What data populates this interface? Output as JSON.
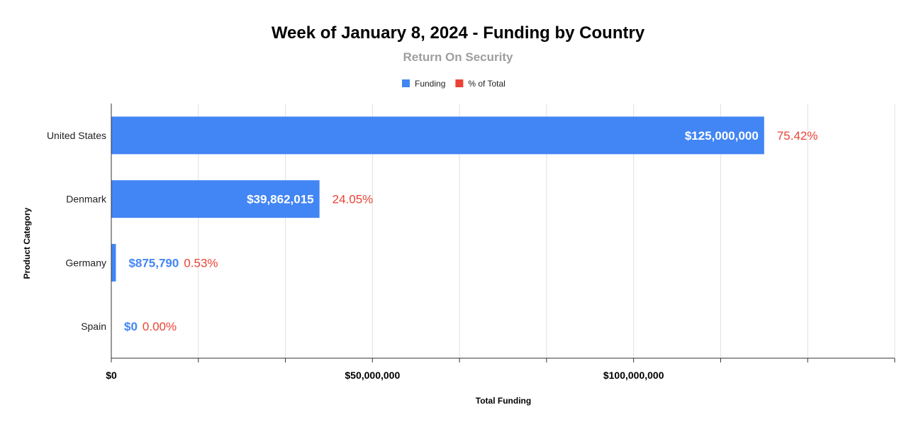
{
  "chart_data": {
    "type": "bar",
    "orientation": "horizontal",
    "title": "Week of January 8, 2024 - Funding by Country",
    "subtitle": "Return On Security",
    "xlabel": "Total Funding",
    "ylabel": "Product Category",
    "categories": [
      "United States",
      "Denmark",
      "Germany",
      "Spain"
    ],
    "series": [
      {
        "name": "Funding",
        "color": "#4285f4",
        "values": [
          125000000,
          39862015,
          875790,
          0
        ],
        "labels": [
          "$125,000,000",
          "$39,862,015",
          "$875,790",
          "$0"
        ]
      },
      {
        "name": "% of Total",
        "color": "#ea4335",
        "values": [
          75.42,
          24.05,
          0.53,
          0.0
        ],
        "labels": [
          "75.42%",
          "24.05%",
          "0.53%",
          "0.00%"
        ]
      }
    ],
    "xlim": [
      0,
      150000000
    ],
    "x_ticks": [
      {
        "value": 0,
        "label": "$0"
      },
      {
        "value": 50000000,
        "label": "$50,000,000"
      },
      {
        "value": 100000000,
        "label": "$100,000,000"
      }
    ],
    "x_gridlines": [
      0,
      16666667,
      33333333,
      50000000,
      66666667,
      83333333,
      100000000,
      116666667,
      133333333,
      150000000
    ],
    "grid": true,
    "legend_position": "top-center"
  }
}
